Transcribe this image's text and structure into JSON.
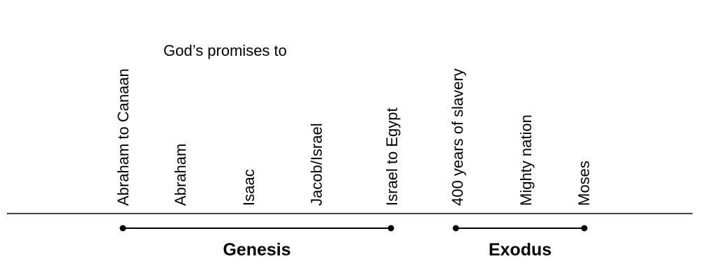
{
  "heading": "God’s promises to",
  "events": [
    "Abraham to Canaan",
    "Abraham",
    "Isaac",
    "Jacob/Israel",
    "Israel to Egypt",
    "400 years of slavery",
    "Mighty nation",
    "Moses"
  ],
  "books": [
    {
      "label": "Genesis"
    },
    {
      "label": "Exodus"
    }
  ],
  "colors": {
    "line": "#000000",
    "text": "#000000",
    "background": "#ffffff"
  }
}
